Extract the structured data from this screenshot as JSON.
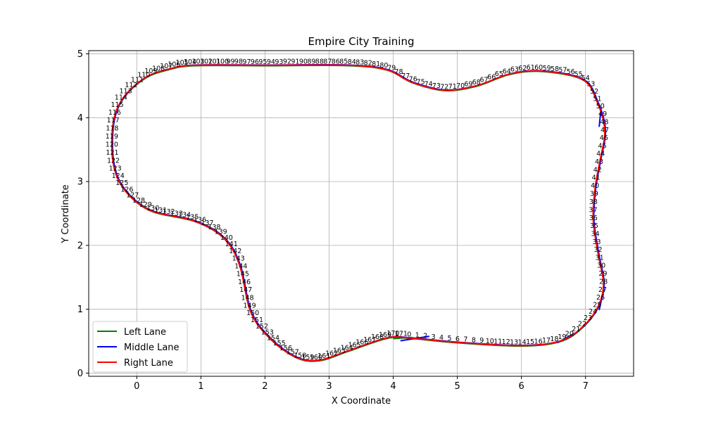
{
  "chart_data": {
    "type": "line",
    "title": "Empire City Training",
    "xlabel": "X Coordinate",
    "ylabel": "Y Coordinate",
    "xlim": [
      -0.75,
      7.75
    ],
    "ylim": [
      -0.05,
      5.05
    ],
    "xticks": [
      0,
      1,
      2,
      3,
      4,
      5,
      6,
      7
    ],
    "yticks": [
      0,
      1,
      2,
      3,
      4,
      5
    ],
    "xtick_labels": [
      "0",
      "1",
      "2",
      "3",
      "4",
      "5",
      "6",
      "7"
    ],
    "ytick_labels": [
      "0",
      "1",
      "2",
      "3",
      "4",
      "5"
    ],
    "grid": true,
    "legend_position": "lower-left",
    "waypoint_count": 172,
    "series": [
      {
        "name": "Left Lane",
        "color": "#008000"
      },
      {
        "name": "Middle Lane",
        "color": "#0000ff"
      },
      {
        "name": "Right Lane",
        "color": "#ff0000"
      }
    ],
    "track_points": [
      [
        4.25,
        0.55
      ],
      [
        5.0,
        0.48
      ],
      [
        6.0,
        0.43
      ],
      [
        6.6,
        0.5
      ],
      [
        6.95,
        0.72
      ],
      [
        7.2,
        1.05
      ],
      [
        7.28,
        1.4
      ],
      [
        7.2,
        1.85
      ],
      [
        7.12,
        2.4
      ],
      [
        7.15,
        2.9
      ],
      [
        7.22,
        3.3
      ],
      [
        7.3,
        3.8
      ],
      [
        7.18,
        4.25
      ],
      [
        6.95,
        4.6
      ],
      [
        6.3,
        4.73
      ],
      [
        5.8,
        4.68
      ],
      [
        5.3,
        4.5
      ],
      [
        4.8,
        4.43
      ],
      [
        4.3,
        4.55
      ],
      [
        3.9,
        4.75
      ],
      [
        3.3,
        4.82
      ],
      [
        2.0,
        4.82
      ],
      [
        0.9,
        4.82
      ],
      [
        0.5,
        4.76
      ],
      [
        0.12,
        4.62
      ],
      [
        -0.22,
        4.3
      ],
      [
        -0.37,
        3.9
      ],
      [
        -0.37,
        3.3
      ],
      [
        -0.2,
        2.88
      ],
      [
        0.2,
        2.55
      ],
      [
        0.9,
        2.38
      ],
      [
        1.35,
        2.12
      ],
      [
        1.6,
        1.7
      ],
      [
        1.78,
        0.95
      ],
      [
        2.1,
        0.52
      ],
      [
        2.5,
        0.24
      ],
      [
        2.85,
        0.2
      ],
      [
        3.3,
        0.35
      ],
      [
        3.9,
        0.55
      ]
    ],
    "middle_segments": [
      [
        [
          4.1,
          0.5
        ],
        [
          4.55,
          0.57
        ]
      ],
      [
        [
          6.55,
          0.47
        ],
        [
          6.82,
          0.62
        ]
      ],
      [
        [
          7.2,
          0.98
        ],
        [
          7.27,
          1.3
        ]
      ],
      [
        [
          7.2,
          3.85
        ],
        [
          7.23,
          4.15
        ]
      ]
    ],
    "left_segments": [
      [
        [
          4.0,
          0.55
        ],
        [
          4.3,
          0.57
        ]
      ]
    ]
  }
}
